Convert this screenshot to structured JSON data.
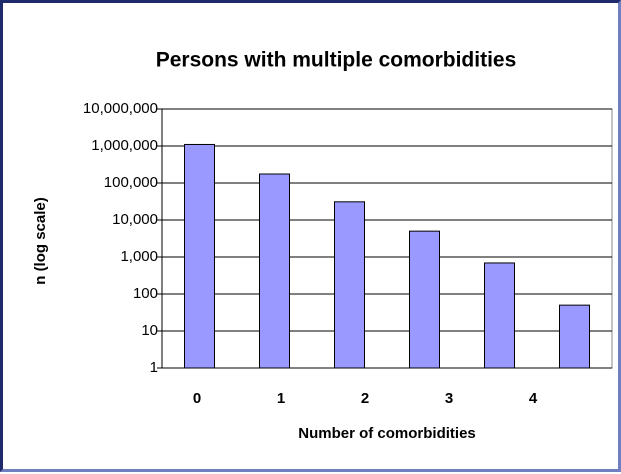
{
  "chart_data": {
    "type": "bar",
    "title": "Persons with multiple comorbidities",
    "x_label": "Number of comorbidities",
    "y_label": "n (log scale)",
    "categories": [
      "0",
      "1",
      "2",
      "3",
      "4",
      null
    ],
    "values": [
      1100000,
      175000,
      31000,
      5000,
      690,
      50
    ],
    "color": "#9999ff",
    "log_scale": true,
    "grid": true,
    "ylim": [
      1,
      10000000
    ],
    "yticks": [
      1,
      10,
      100,
      {
        "value": 1000,
        "label": "1,000"
      },
      {
        "value": 10000,
        "label": "10,000"
      },
      {
        "value": 100000,
        "label": "100,000"
      },
      {
        "value": 1000000,
        "label": "1,000,000"
      },
      {
        "value": 10000000,
        "label": "10,000,000"
      }
    ]
  }
}
